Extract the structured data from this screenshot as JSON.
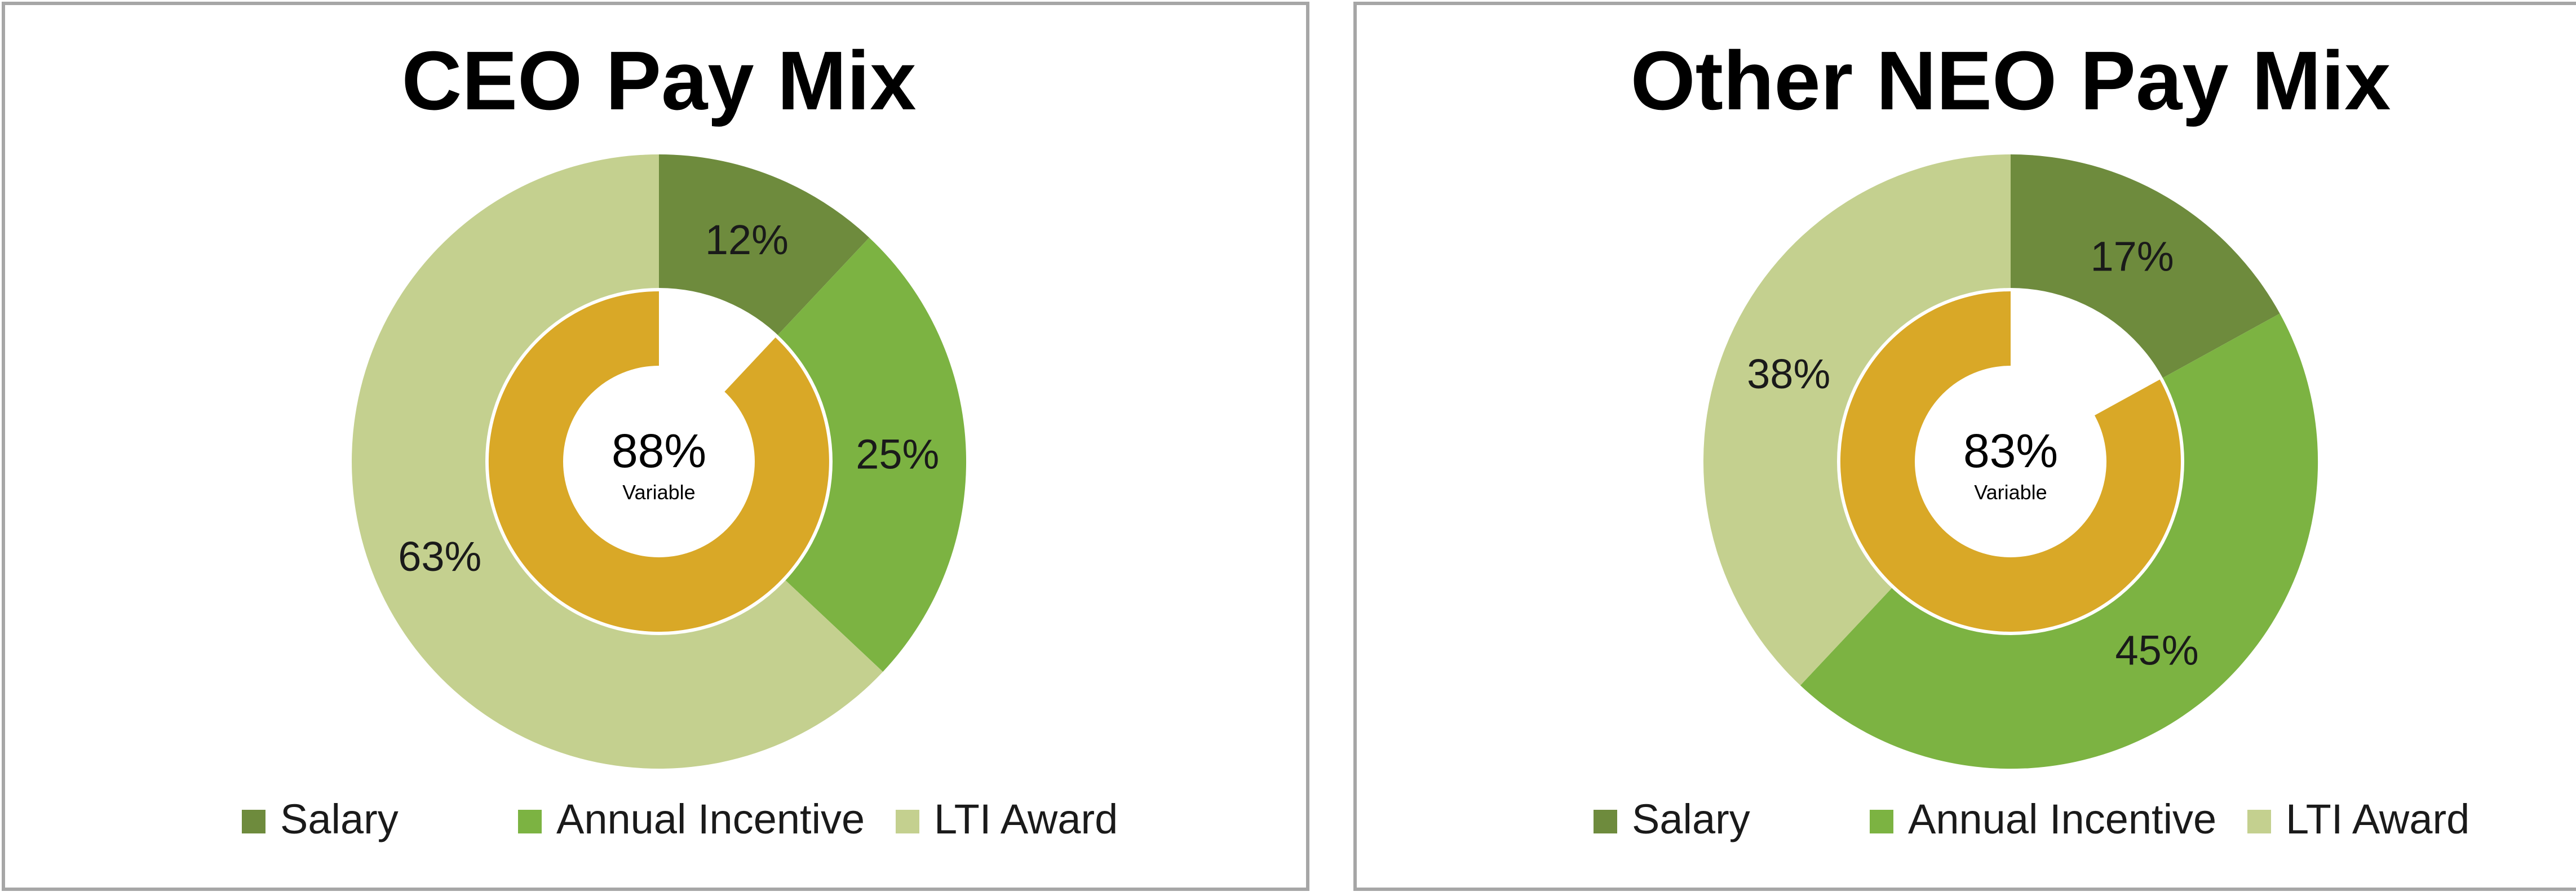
{
  "chart_data": [
    {
      "type": "pie",
      "title": "CEO Pay Mix",
      "categories": [
        "Salary",
        "Annual Incentive",
        "LTI Award"
      ],
      "values": [
        12,
        25,
        63
      ],
      "value_labels": [
        "12%",
        "25%",
        "63%"
      ],
      "colors": [
        "#6e8b3d",
        "#7cb342",
        "#c4d08f"
      ],
      "inner_ring": {
        "value": 88,
        "color": "#d9a827"
      },
      "center_value": "88%",
      "center_label": "Variable",
      "legend": {
        "position": "bottom",
        "entries": [
          "Salary",
          "Annual Incentive",
          "LTI Award"
        ]
      }
    },
    {
      "type": "pie",
      "title": "Other NEO Pay Mix",
      "categories": [
        "Salary",
        "Annual Incentive",
        "LTI Award"
      ],
      "values": [
        17,
        45,
        38
      ],
      "value_labels": [
        "17%",
        "45%",
        "38%"
      ],
      "colors": [
        "#6e8b3d",
        "#7cb342",
        "#c4d08f"
      ],
      "inner_ring": {
        "value": 83,
        "color": "#d9a827"
      },
      "center_value": "83%",
      "center_label": "Variable",
      "legend": {
        "position": "bottom",
        "entries": [
          "Salary",
          "Annual Incentive",
          "LTI Award"
        ]
      }
    }
  ]
}
